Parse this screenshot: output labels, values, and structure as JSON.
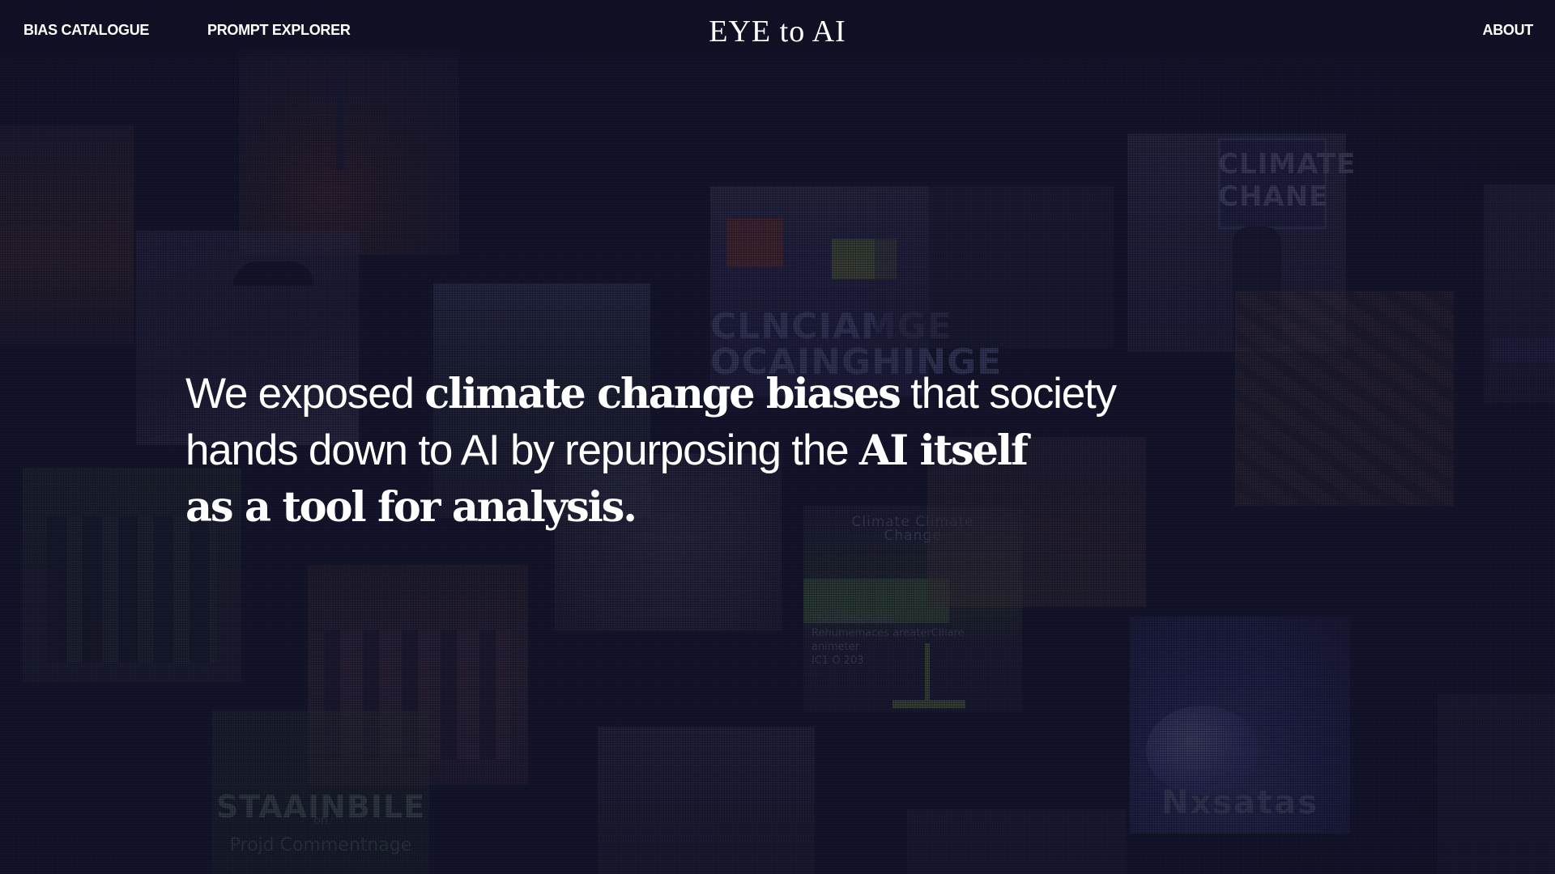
{
  "nav": {
    "left_items": [
      {
        "label": "BIAS CATALOGUE"
      },
      {
        "label": "PROMPT EXPLORER"
      }
    ],
    "brand": "EYE to AI",
    "right_items": [
      {
        "label": "ABOUT"
      }
    ]
  },
  "hero": {
    "line1": {
      "pre": "We exposed ",
      "em": "climate change biases",
      "post": " that society"
    },
    "line2": {
      "pre": "hands down to AI by repurposing the ",
      "em": "AI itself"
    },
    "line3": {
      "em": "as a tool for analysis."
    }
  },
  "collage": {
    "sign_texts": {
      "protest_banner": "CLNCIAMGE\nOCAINGHINGE",
      "climate_sign": "CLIMATE\nCHANE",
      "poster_heading": "Climate Climate\nChange",
      "poster_caption": "The clemetiolcs\nRehumemaces areaterCiliare\nanimeter\nIC1 O 203",
      "green_sign": "STAAINBILE",
      "green_sign_sub": "Projd Commentnage",
      "green_sign_small": "on",
      "ice_text": "Nxsatas"
    }
  },
  "colors": {
    "background": "#15152a",
    "text": "#ffffff"
  }
}
